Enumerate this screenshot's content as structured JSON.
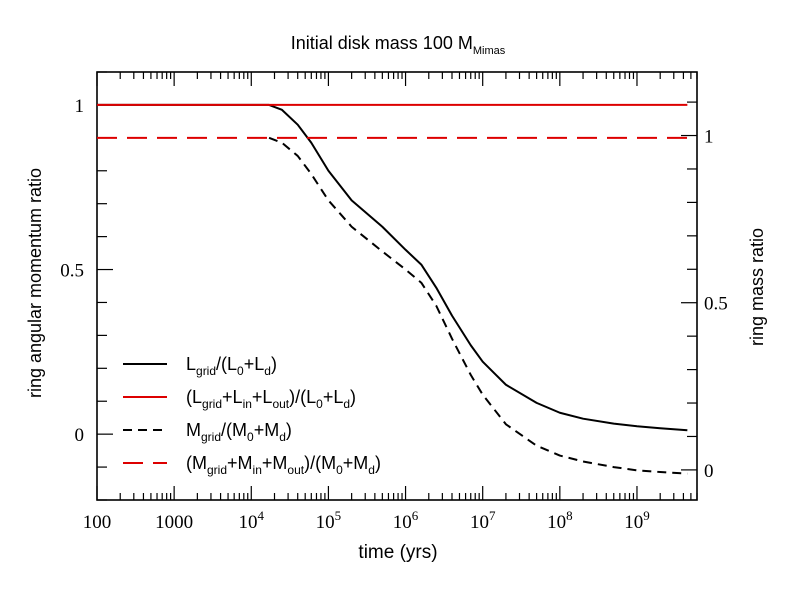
{
  "chart_data": {
    "type": "line",
    "title": "Initial disk mass 100 M",
    "title_subscript": "Mimas",
    "xlabel": "time (yrs)",
    "ylabel_left": "ring angular momentum ratio",
    "ylabel_right": "ring mass ratio",
    "x_scale": "log",
    "xlim": [
      100,
      6000000000
    ],
    "ylim_left": [
      -0.2,
      1.1
    ],
    "ylim_right": [
      -0.09,
      1.19
    ],
    "x_ticks": [
      {
        "value": 100,
        "label": "100",
        "sup": ""
      },
      {
        "value": 1000,
        "label": "1000",
        "sup": ""
      },
      {
        "value": 10000,
        "label": "10",
        "sup": "4"
      },
      {
        "value": 100000,
        "label": "10",
        "sup": "5"
      },
      {
        "value": 1000000,
        "label": "10",
        "sup": "6"
      },
      {
        "value": 10000000,
        "label": "10",
        "sup": "7"
      },
      {
        "value": 100000000,
        "label": "10",
        "sup": "8"
      },
      {
        "value": 1000000000,
        "label": "10",
        "sup": "9"
      }
    ],
    "y_ticks_left": [
      {
        "value": 0,
        "label": "0"
      },
      {
        "value": 0.5,
        "label": "0.5"
      },
      {
        "value": 1,
        "label": "1"
      }
    ],
    "y_ticks_right": [
      {
        "value": 0,
        "label": "0"
      },
      {
        "value": 0.5,
        "label": "0.5"
      },
      {
        "value": 1,
        "label": "1"
      }
    ],
    "series": [
      {
        "name": "L_grid/(L_0+L_d)",
        "axis": "left",
        "color": "#000000",
        "dash": "solid",
        "x": [
          100,
          10000,
          17000,
          25000,
          40000,
          60000,
          100000,
          200000,
          500000,
          1000000,
          1600000,
          2500000,
          4000000,
          7000000,
          10000000,
          20000000,
          50000000,
          100000000,
          200000000,
          500000000,
          1000000000,
          2000000000,
          4500000000
        ],
        "y": [
          1.0,
          1.0,
          1.0,
          0.985,
          0.94,
          0.885,
          0.8,
          0.71,
          0.63,
          0.56,
          0.515,
          0.445,
          0.36,
          0.27,
          0.22,
          0.15,
          0.095,
          0.065,
          0.047,
          0.032,
          0.024,
          0.018,
          0.012
        ]
      },
      {
        "name": "(L_grid+L_in+L_out)/(L_0+L_d)",
        "axis": "left",
        "color": "#dd0000",
        "dash": "solid",
        "x": [
          100,
          4500000000
        ],
        "y": [
          1.0,
          1.0
        ]
      },
      {
        "name": "M_grid/(M_0+M_d)",
        "axis": "left",
        "color": "#000000",
        "dash": "dash-short",
        "x": [
          17000,
          25000,
          40000,
          60000,
          100000,
          200000,
          500000,
          1000000,
          1600000,
          2500000,
          4000000,
          7000000,
          10000000,
          20000000,
          50000000,
          100000000,
          200000000,
          500000000,
          1000000000,
          2000000000,
          4500000000
        ],
        "y": [
          0.9,
          0.885,
          0.845,
          0.79,
          0.71,
          0.63,
          0.555,
          0.5,
          0.46,
          0.39,
          0.29,
          0.18,
          0.12,
          0.03,
          -0.035,
          -0.065,
          -0.083,
          -0.1,
          -0.11,
          -0.115,
          -0.12
        ]
      },
      {
        "name": "(M_grid+M_in+M_out)/(M_0+M_d)",
        "axis": "left",
        "color": "#dd0000",
        "dash": "dash-long",
        "x": [
          100,
          4500000000
        ],
        "y": [
          0.9,
          0.9
        ]
      }
    ],
    "legend": {
      "placement": "bottom-left",
      "entries": [
        {
          "parts": [
            [
              "L",
              "n"
            ],
            [
              "grid",
              "sub"
            ],
            [
              "/(L",
              "n"
            ],
            [
              "0",
              "sub"
            ],
            [
              "+L",
              "n"
            ],
            [
              "d",
              "sub"
            ],
            [
              ")",
              "n"
            ]
          ]
        },
        {
          "parts": [
            [
              "(L",
              "n"
            ],
            [
              "grid",
              "sub"
            ],
            [
              "+L",
              "n"
            ],
            [
              "in",
              "sub"
            ],
            [
              "+L",
              "n"
            ],
            [
              "out",
              "sub"
            ],
            [
              ")/(L",
              "n"
            ],
            [
              "0",
              "sub"
            ],
            [
              "+L",
              "n"
            ],
            [
              "d",
              "sub"
            ],
            [
              ")",
              "n"
            ]
          ]
        },
        {
          "parts": [
            [
              "M",
              "n"
            ],
            [
              "grid",
              "sub"
            ],
            [
              "/(M",
              "n"
            ],
            [
              "0",
              "sub"
            ],
            [
              "+M",
              "n"
            ],
            [
              "d",
              "sub"
            ],
            [
              ")",
              "n"
            ]
          ]
        },
        {
          "parts": [
            [
              "(M",
              "n"
            ],
            [
              "grid",
              "sub"
            ],
            [
              "+M",
              "n"
            ],
            [
              "in",
              "sub"
            ],
            [
              "+M",
              "n"
            ],
            [
              "out",
              "sub"
            ],
            [
              ")/(M",
              "n"
            ],
            [
              "0",
              "sub"
            ],
            [
              "+M",
              "n"
            ],
            [
              "d",
              "sub"
            ],
            [
              ")",
              "n"
            ]
          ]
        }
      ]
    }
  }
}
